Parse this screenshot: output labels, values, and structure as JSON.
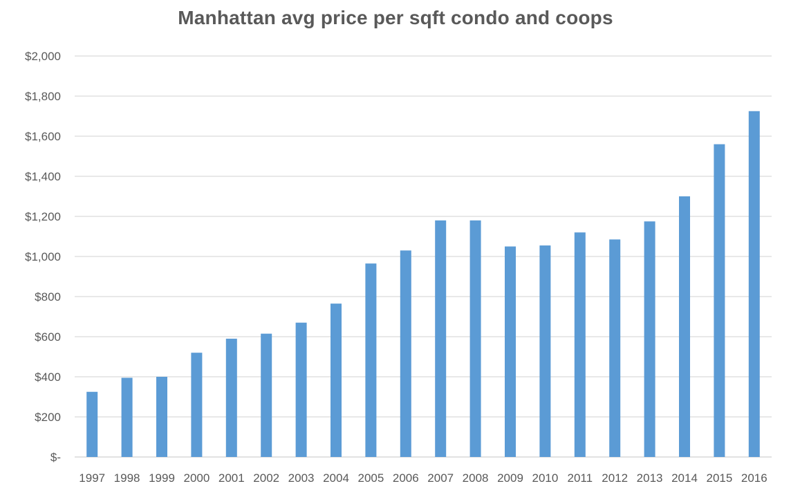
{
  "chart_data": {
    "type": "bar",
    "title": "Manhattan avg price per sqft condo and coops",
    "xlabel": "",
    "ylabel": "",
    "categories": [
      "1997",
      "1998",
      "1999",
      "2000",
      "2001",
      "2002",
      "2003",
      "2004",
      "2005",
      "2006",
      "2007",
      "2008",
      "2009",
      "2010",
      "2011",
      "2012",
      "2013",
      "2014",
      "2015",
      "2016"
    ],
    "series": [
      {
        "values": [
          325,
          395,
          400,
          520,
          590,
          615,
          670,
          765,
          965,
          1030,
          1180,
          1180,
          1050,
          1055,
          1120,
          1085,
          1175,
          1300,
          1560,
          1725
        ]
      }
    ],
    "ylim": [
      0,
      2000
    ],
    "yticks": [
      0,
      200,
      400,
      600,
      800,
      1000,
      1200,
      1400,
      1600,
      1800,
      2000
    ],
    "ytick_labels": [
      "$-",
      "$200",
      "$400",
      "$600",
      "$800",
      "$1,000",
      "$1,200",
      "$1,400",
      "$1,600",
      "$1,800",
      "$2,000"
    ],
    "grid": true,
    "legend": "none",
    "bar_color": "#5b9bd5"
  }
}
